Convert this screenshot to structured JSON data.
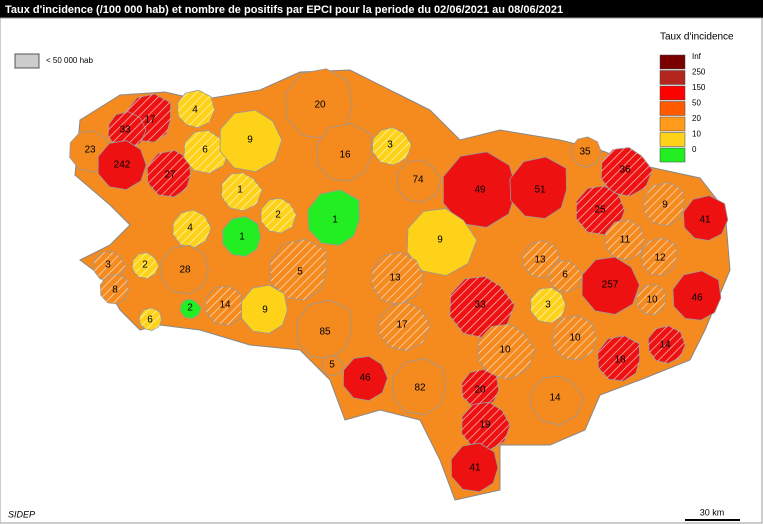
{
  "title": "Taux d'incidence (/100 000 hab) et nombre de positifs par EPCI pour la periode du 02/06/2021 au 08/06/2021",
  "hatch_legend": "< 50 000 hab",
  "legend": {
    "title": "Taux d'incidence",
    "classes": [
      {
        "label": "Inf",
        "color": "#7a0000"
      },
      {
        "label": "250",
        "color": "#b3261e"
      },
      {
        "label": "150",
        "color": "#ff0000"
      },
      {
        "label": "50",
        "color": "#ff5a00"
      },
      {
        "label": "20",
        "color": "#ff9a1a"
      },
      {
        "label": "10",
        "color": "#ffd21a"
      },
      {
        "label": "0",
        "color": "#22ee22"
      }
    ]
  },
  "regions": [
    {
      "label": "17",
      "color": "#ee1111",
      "hatched": true
    },
    {
      "label": "33",
      "color": "#ee1111",
      "hatched": true
    },
    {
      "label": "23",
      "color": "#f58a1f",
      "hatched": false
    },
    {
      "label": "242",
      "color": "#ee1111",
      "hatched": false
    },
    {
      "label": "27",
      "color": "#ee1111",
      "hatched": true
    },
    {
      "label": "4",
      "color": "#ffd21a",
      "hatched": true
    },
    {
      "label": "6",
      "color": "#ffd21a",
      "hatched": true
    },
    {
      "label": "9",
      "color": "#ffd21a",
      "hatched": false
    },
    {
      "label": "20",
      "color": "#f58a1f",
      "hatched": false
    },
    {
      "label": "16",
      "color": "#f58a1f",
      "hatched": false
    },
    {
      "label": "3",
      "color": "#ffd21a",
      "hatched": true
    },
    {
      "label": "74",
      "color": "#f58a1f",
      "hatched": false
    },
    {
      "label": "49",
      "color": "#ee1111",
      "hatched": false
    },
    {
      "label": "51",
      "color": "#ee1111",
      "hatched": false
    },
    {
      "label": "35",
      "color": "#f58a1f",
      "hatched": false
    },
    {
      "label": "36",
      "color": "#ee1111",
      "hatched": true
    },
    {
      "label": "25",
      "color": "#ee1111",
      "hatched": true
    },
    {
      "label": "9",
      "color": "#f58a1f",
      "hatched": true
    },
    {
      "label": "41",
      "color": "#ee1111",
      "hatched": false
    },
    {
      "label": "1",
      "color": "#ffd21a",
      "hatched": true
    },
    {
      "label": "2",
      "color": "#ffd21a",
      "hatched": true
    },
    {
      "label": "1",
      "color": "#22ee22",
      "hatched": false
    },
    {
      "label": "1",
      "color": "#22ee22",
      "hatched": false
    },
    {
      "label": "4",
      "color": "#ffd21a",
      "hatched": true
    },
    {
      "label": "9",
      "color": "#ffd21a",
      "hatched": false
    },
    {
      "label": "11",
      "color": "#f58a1f",
      "hatched": true
    },
    {
      "label": "12",
      "color": "#f58a1f",
      "hatched": true
    },
    {
      "label": "13",
      "color": "#f58a1f",
      "hatched": true
    },
    {
      "label": "6",
      "color": "#f58a1f",
      "hatched": true
    },
    {
      "label": "257",
      "color": "#ee1111",
      "hatched": false
    },
    {
      "label": "10",
      "color": "#f58a1f",
      "hatched": true
    },
    {
      "label": "46",
      "color": "#ee1111",
      "hatched": false
    },
    {
      "label": "3",
      "color": "#f58a1f",
      "hatched": true
    },
    {
      "label": "2",
      "color": "#ffd21a",
      "hatched": true
    },
    {
      "label": "28",
      "color": "#f58a1f",
      "hatched": false
    },
    {
      "label": "5",
      "color": "#f58a1f",
      "hatched": true
    },
    {
      "label": "13",
      "color": "#f58a1f",
      "hatched": true
    },
    {
      "label": "33",
      "color": "#ee1111",
      "hatched": true
    },
    {
      "label": "3",
      "color": "#ffd21a",
      "hatched": true
    },
    {
      "label": "8",
      "color": "#f58a1f",
      "hatched": true
    },
    {
      "label": "6",
      "color": "#ffd21a",
      "hatched": true
    },
    {
      "label": "2",
      "color": "#22ee22",
      "hatched": false
    },
    {
      "label": "14",
      "color": "#f58a1f",
      "hatched": true
    },
    {
      "label": "9",
      "color": "#ffd21a",
      "hatched": false
    },
    {
      "label": "85",
      "color": "#f58a1f",
      "hatched": false
    },
    {
      "label": "17",
      "color": "#f58a1f",
      "hatched": true
    },
    {
      "label": "10",
      "color": "#f58a1f",
      "hatched": true
    },
    {
      "label": "10",
      "color": "#f58a1f",
      "hatched": true
    },
    {
      "label": "18",
      "color": "#ee1111",
      "hatched": true
    },
    {
      "label": "14",
      "color": "#ee1111",
      "hatched": true
    },
    {
      "label": "5",
      "color": "#f58a1f",
      "hatched": false
    },
    {
      "label": "46",
      "color": "#ee1111",
      "hatched": false
    },
    {
      "label": "82",
      "color": "#f58a1f",
      "hatched": false
    },
    {
      "label": "20",
      "color": "#ee1111",
      "hatched": true
    },
    {
      "label": "14",
      "color": "#f58a1f",
      "hatched": false
    },
    {
      "label": "19",
      "color": "#ee1111",
      "hatched": true
    },
    {
      "label": "41",
      "color": "#ee1111",
      "hatched": false
    }
  ],
  "source": "SIDEP",
  "scale": "30 km"
}
